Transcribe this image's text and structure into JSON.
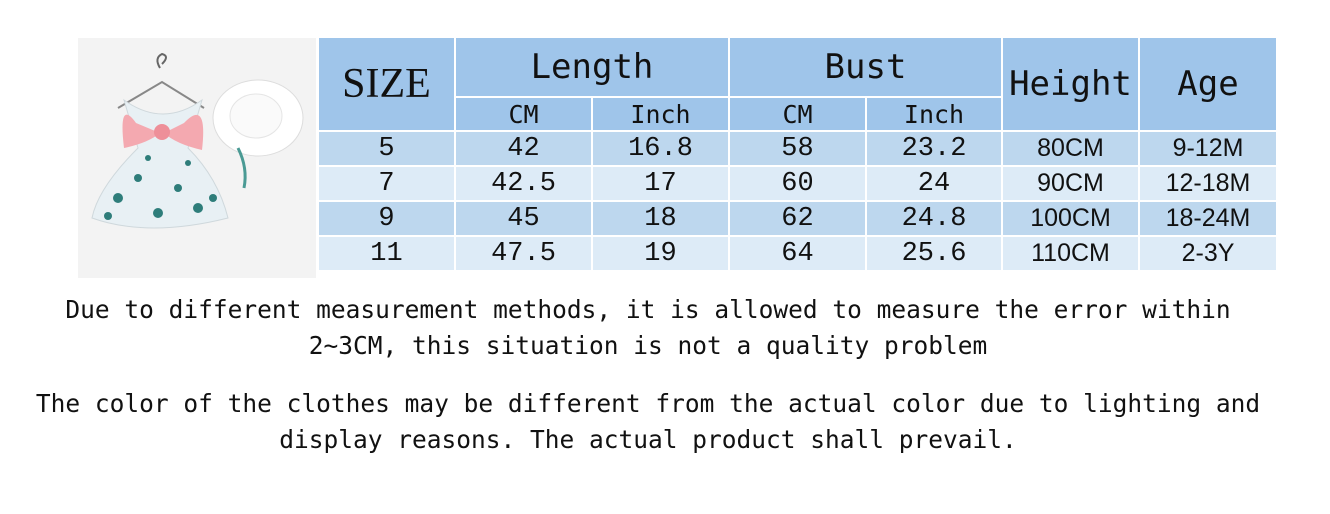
{
  "table": {
    "header": {
      "size": "SIZE",
      "length": "Length",
      "bust": "Bust",
      "height": "Height",
      "age": "Age",
      "sub": [
        "CM",
        "Inch",
        "CM",
        "Inch"
      ]
    },
    "rows": [
      [
        "5",
        "42",
        "16.8",
        "58",
        "23.2",
        "80CM",
        "9-12M"
      ],
      [
        "7",
        "42.5",
        "17",
        "60",
        "24",
        "90CM",
        "12-18M"
      ],
      [
        "9",
        "45",
        "18",
        "62",
        "24.8",
        "100CM",
        "18-24M"
      ],
      [
        "11",
        "47.5",
        "19",
        "64",
        "25.6",
        "110CM",
        "2-3Y"
      ]
    ]
  },
  "notes": [
    [
      "Due to different measurement methods, it is allowed to measure the error within",
      "2~3CM, this situation is not a quality problem"
    ],
    [
      "The color of the clothes may be different from the actual color due to lighting and",
      "display reasons. The actual product shall prevail."
    ]
  ]
}
